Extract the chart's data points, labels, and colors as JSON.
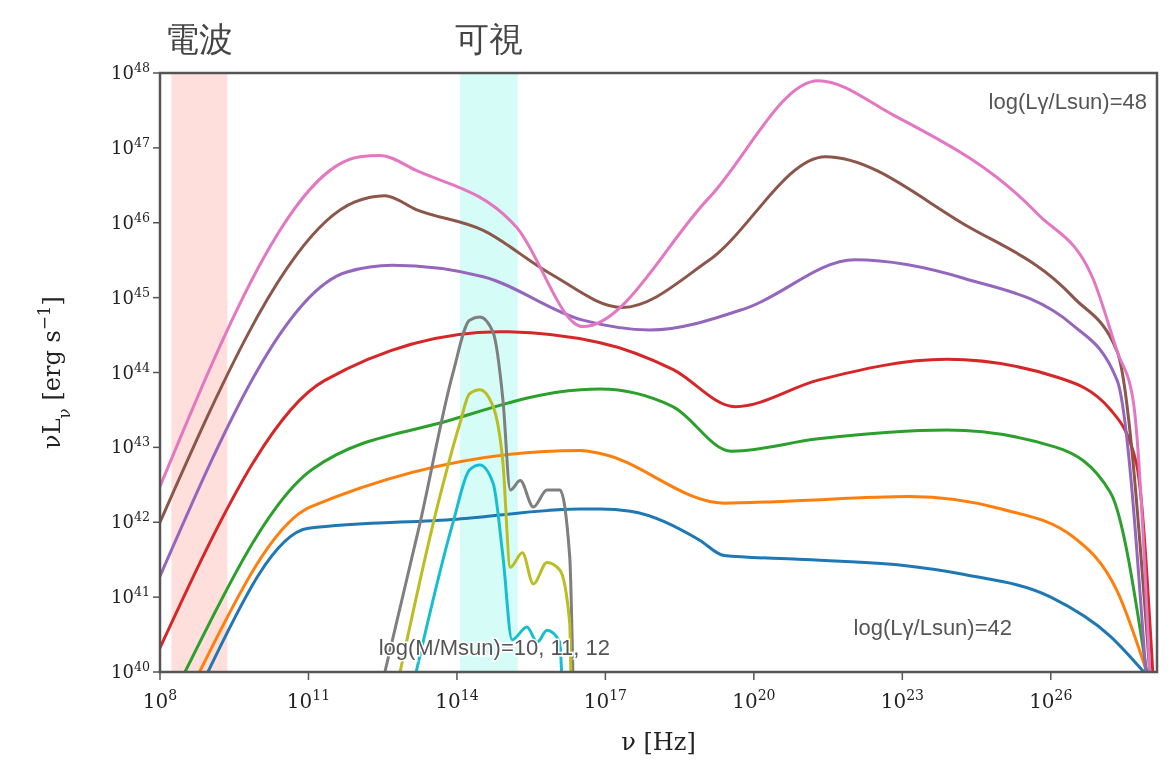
{
  "chart_data": {
    "type": "line",
    "xlabel": "ν [Hz]",
    "ylabel": "νL$_{ν}$ [erg s$^{−1}$]",
    "log": "xy",
    "grid": false,
    "marker": "none",
    "line_style": "solid",
    "xlim": [
      100000000.0,
      1.4e+28
    ],
    "ylim": [
      1e+40,
      1e+48
    ],
    "xticks": [
      {
        "value": 100000000.0,
        "label": "10$^{8}$"
      },
      {
        "value": 100000000000.0,
        "label": "10$^{11}$"
      },
      {
        "value": 100000000000000.0,
        "label": "10$^{14}$"
      },
      {
        "value": 1e+17,
        "label": "10$^{17}$"
      },
      {
        "value": 1e+20,
        "label": "10$^{20}$"
      },
      {
        "value": 1e+23,
        "label": "10$^{23}$"
      },
      {
        "value": 1e+26,
        "label": "10$^{26}$"
      }
    ],
    "yticks": [
      {
        "value": 1e+40,
        "label": "10$^{40}$"
      },
      {
        "value": 1e+41,
        "label": "10$^{41}$"
      },
      {
        "value": 1e+42,
        "label": "10$^{42}$"
      },
      {
        "value": 1e+43,
        "label": "10$^{43}$"
      },
      {
        "value": 1e+44,
        "label": "10$^{44}$"
      },
      {
        "value": 1e+45,
        "label": "10$^{45}$"
      },
      {
        "value": 1e+46,
        "label": "10$^{46}$"
      },
      {
        "value": 1e+47,
        "label": "10$^{47}$"
      },
      {
        "value": 1e+48,
        "label": "10$^{48}$"
      }
    ],
    "bands": [
      {
        "axis": "x",
        "from": 170000000.0,
        "to": 2300000000.0,
        "label": "電波",
        "color": "#ffc4c0"
      },
      {
        "axis": "x",
        "from": 115000000000000.0,
        "to": 1700000000000000.0,
        "label": "可視",
        "color": "#b3f9ef"
      }
    ],
    "series": [
      {
        "color": "#1f77b4",
        "x": [
          930000000.0,
          100000000000.0,
          100000000000000.0,
          3.2e+16,
          7.8e+16,
          3.2e+17,
          7.9e+18,
          2.5e+19,
          7.9e+20,
          7.9e+22,
          1.8e+24,
          1e+26,
          1.6e+27,
          7.6e+27
        ],
        "values": [
          1e+40,
          8.3e+41,
          1.1e+42,
          1.5e+42,
          1.5e+42,
          1.4e+42,
          5.8e+41,
          3.6e+41,
          3.2e+41,
          2.7e+41,
          2e+41,
          1e+41,
          3e+40,
          1e+40
        ]
      },
      {
        "color": "#ff7f0e",
        "x": [
          630000000.0,
          110000000000.0,
          3.2e+16,
          7.8e+16,
          2.5e+19,
          3.7e+20,
          1.4e+23,
          1e+25,
          2.9e+26,
          2.2e+27,
          8.7e+27
        ],
        "values": [
          1e+40,
          1.6e+42,
          9.1e+42,
          8.3e+42,
          1.8e+42,
          1.9e+42,
          2.2e+42,
          1.5e+42,
          6.3e+41,
          1.2e+41,
          1e+40
        ]
      },
      {
        "color": "#2ca02c",
        "x": [
          320000000.0,
          120000000000.0,
          72000000000000.0,
          3.2e+16,
          7.8e+16,
          2.3e+18,
          3.5e+19,
          2e+21,
          7.9e+23,
          1.3e+26,
          1.6e+27,
          8.7e+27
        ],
        "values": [
          1e+40,
          5.1e+42,
          2.3e+43,
          5.9e+43,
          6e+43,
          3.5e+43,
          8.9e+42,
          1.3e+43,
          1.7e+43,
          1e+43,
          2.5e+42,
          1e+40
        ]
      },
      {
        "color": "#d62728",
        "x": [
          100000000.0,
          210000000000.0,
          740000000000000.0,
          7.8e+16,
          2.3e+18,
          4.2e+19,
          2e+21,
          7.9e+23,
          1.3e+26,
          1.6e+27,
          5.4e+27,
          1.15e+28
        ],
        "values": [
          2.1e+40,
          7.8e+43,
          3.5e+44,
          2.5e+44,
          1.1e+44,
          3.5e+43,
          7.9e+43,
          1.5e+44,
          8.7e+43,
          3.2e+43,
          6e+42,
          1e+40
        ]
      },
      {
        "color": "#9467bd",
        "x": [
          100000000.0,
          600000000000.0,
          5000000000000.0,
          340000000000000.0,
          3.5e+16,
          7.9e+17,
          6.9e+19,
          1.1e+22,
          1.8e+24,
          2.9e+26,
          2.2e+27,
          8.3e+27
        ],
        "values": [
          1.9e+41,
          2.2e+45,
          2.7e+45,
          1.9e+45,
          5e+44,
          3.7e+44,
          7.2e+44,
          3.2e+45,
          1.8e+45,
          4.2e+44,
          7.8e+43,
          1e+40
        ]
      },
      {
        "color": "#8c564b",
        "x": [
          100000000.0,
          870000000000.0,
          3500000000000.0,
          15000000000000.0,
          340000000000000.0,
          7600000000000000.0,
          2.2e+17,
          1.2e+19,
          2.8e+21,
          1.8e+24,
          2.9e+26,
          2.2e+27,
          1e+28
        ],
        "values": [
          1e+42,
          1.9e+46,
          2.3e+46,
          1.5e+46,
          7.9e+45,
          2.1e+45,
          7.4e+44,
          3.1e+45,
          7.6e+46,
          9.5e+45,
          1e+45,
          1.9e+44,
          1e+40
        ]
      },
      {
        "color": "#e377c2",
        "x": [
          100000000.0,
          1100000000000.0,
          2800000000000.0,
          15000000000000.0,
          1600000000000000.0,
          3.5e+16,
          1.2e+19,
          2e+21,
          6.2e+22,
          5.5e+25,
          7.1e+26,
          2.2e+27,
          4.6e+27,
          1e+28
        ],
        "values": [
          3e+42,
          7.6e+46,
          7.9e+46,
          5e+46,
          8.7e+45,
          4.1e+44,
          2.1e+46,
          7.9e+47,
          2.8e+47,
          1.3e+46,
          1.8e+45,
          1.9e+44,
          4.3e+43,
          1e+40
        ]
      },
      {
        "color": "#7f7f7f",
        "x": [
          3500000000000.0,
          18000000000000.0,
          83000000000000.0,
          180000000000000.0,
          290000000000000.0,
          540000000000000.0,
          850000000000000.0,
          1200000000000000.0,
          1900000000000000.0,
          3500000000000000.0,
          6600000000000000.0,
          1.2e+16,
          1.9e+16,
          2.2e+16
        ],
        "values": [
          1e+40,
          9.8e+41,
          9.8e+43,
          5e+44,
          5.5e+44,
          3.4e+44,
          4.3e+43,
          2.7e+42,
          3.6e+42,
          1.6e+42,
          2.7e+42,
          2.7e+42,
          3.5e+41,
          1e+40
        ]
      },
      {
        "color": "#bcbd22",
        "x": [
          7100000000000.0,
          40000000000000.0,
          115000000000000.0,
          180000000000000.0,
          290000000000000.0,
          540000000000000.0,
          850000000000000.0,
          1200000000000000.0,
          2100000000000000.0,
          3500000000000000.0,
          6600000000000000.0,
          1.2e+16,
          1.9e+16,
          2e+16
        ],
        "values": [
          1e+40,
          1.6e+42,
          2.1e+43,
          5.2e+43,
          5.9e+43,
          3.5e+43,
          6.2e+42,
          2.5e+41,
          3.9e+41,
          1.5e+41,
          2.9e+41,
          2.3e+41,
          4.5e+40,
          1e+40
        ]
      },
      {
        "color": "#17becf",
        "x": [
          15000000000000.0,
          83000000000000.0,
          180000000000000.0,
          290000000000000.0,
          540000000000000.0,
          850000000000000.0,
          1300000000000000.0,
          2600000000000000.0,
          4200000000000000.0,
          6600000000000000.0,
          1.2e+16,
          1.3e+16
        ],
        "values": [
          1e+40,
          9.8e+41,
          5e+42,
          5.8e+42,
          3.3e+42,
          3.5e+41,
          2.7e+40,
          4e+40,
          2.5e+40,
          3.6e+40,
          2.5e+40,
          1e+40
        ]
      }
    ],
    "annotations": [
      "log(Lγ/Lsun)=48",
      "log(Lγ/Lsun)=42",
      "log(M/Msun)=10, 11, 12"
    ]
  }
}
